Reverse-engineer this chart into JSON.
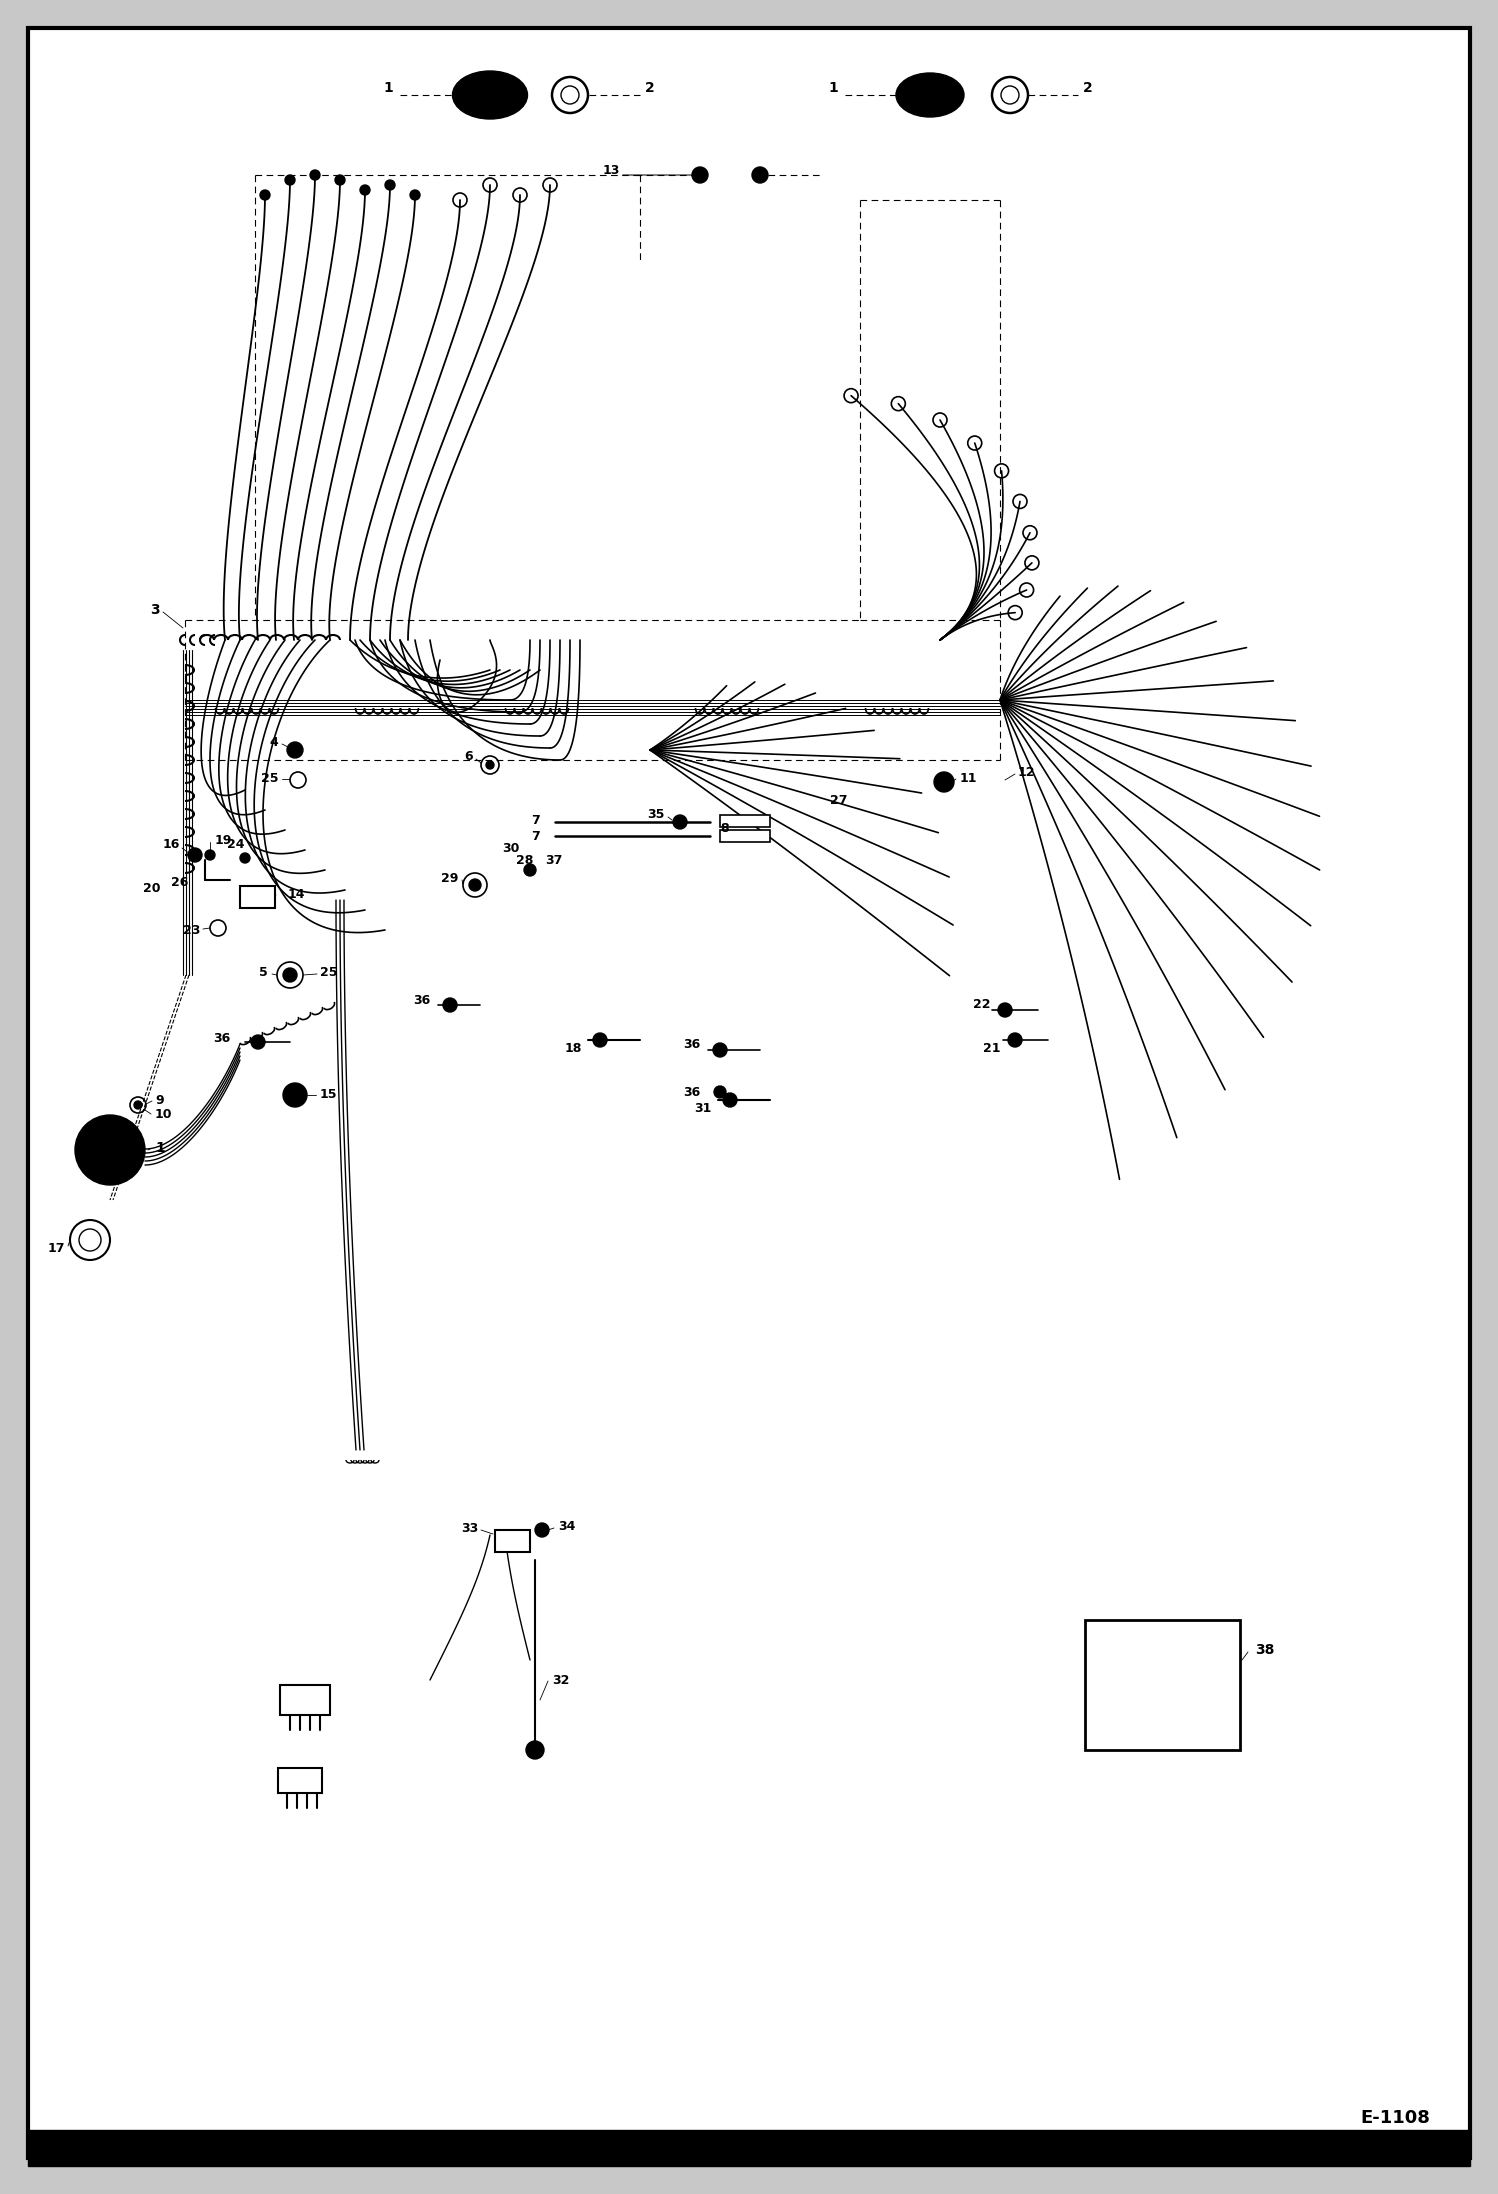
{
  "bg": "#c8c8c8",
  "page": "#ffffff",
  "lc": "#000000",
  "figsize": [
    14.98,
    21.94
  ],
  "dpi": 100,
  "page_code": "E-1108"
}
